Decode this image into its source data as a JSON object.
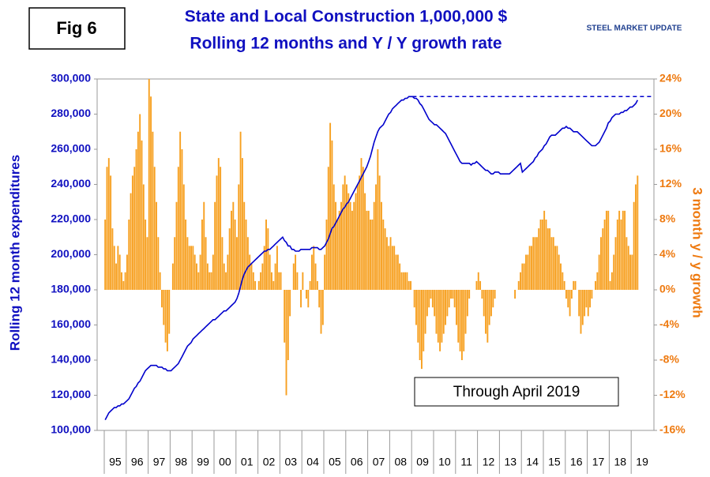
{
  "chart_data": {
    "type": "bar_line",
    "label": "Fig 6",
    "title": "State and Local Construction 1,000,000 $",
    "subtitle": "Rolling 12 months and Y / Y growth rate",
    "logo": "STEEL MARKET UPDATE",
    "annotation": "Through April 2019",
    "y_label": "Rolling 12 month expenditures",
    "y2_label": "3 month y / y growth",
    "categories": [
      "95",
      "96",
      "97",
      "98",
      "99",
      "00",
      "01",
      "02",
      "03",
      "04",
      "05",
      "06",
      "07",
      "08",
      "09",
      "10",
      "11",
      "12",
      "13",
      "14",
      "15",
      "16",
      "17",
      "18",
      "19"
    ],
    "ylim": [
      100000,
      300000
    ],
    "yticks": [
      {
        "value": 100000,
        "label": "100,000"
      },
      {
        "value": 120000,
        "label": "120,000"
      },
      {
        "value": 140000,
        "label": "140,000"
      },
      {
        "value": 160000,
        "label": "160,000"
      },
      {
        "value": 180000,
        "label": "180,000"
      },
      {
        "value": 200000,
        "label": "200,000"
      },
      {
        "value": 220000,
        "label": "220,000"
      },
      {
        "value": 240000,
        "label": "240,000"
      },
      {
        "value": 260000,
        "label": "260,000"
      },
      {
        "value": 280000,
        "label": "280,000"
      },
      {
        "value": 300000,
        "label": "300,000"
      }
    ],
    "y2lim": [
      -16,
      24
    ],
    "y2ticks": [
      {
        "value": -16,
        "label": "-16%"
      },
      {
        "value": -12,
        "label": "-12%"
      },
      {
        "value": -8,
        "label": "-8%"
      },
      {
        "value": -4,
        "label": "-4%"
      },
      {
        "value": 0,
        "label": "0%"
      },
      {
        "value": 4,
        "label": "4%"
      },
      {
        "value": 8,
        "label": "8%"
      },
      {
        "value": 12,
        "label": "12%"
      },
      {
        "value": 16,
        "label": "16%"
      },
      {
        "value": 20,
        "label": "20%"
      },
      {
        "value": 24,
        "label": "24%"
      }
    ],
    "reference_line": 290000,
    "series": [
      {
        "type": "bar",
        "axis": "y2",
        "color": "#f7a020",
        "values": [
          [
            8,
            14,
            15,
            13,
            7,
            5,
            3,
            5,
            4,
            2,
            1,
            2
          ],
          [
            4,
            8,
            11,
            13,
            14,
            16,
            18,
            20,
            17,
            12,
            8,
            6
          ],
          [
            24,
            22,
            18,
            14,
            10,
            6,
            2,
            -2,
            -4,
            -6,
            -7,
            -5
          ],
          [
            0,
            3,
            6,
            10,
            14,
            18,
            16,
            12,
            8,
            6,
            5,
            5
          ],
          [
            5,
            4,
            3,
            2,
            4,
            8,
            10,
            6,
            3,
            2,
            2,
            4
          ],
          [
            10,
            13,
            15,
            14,
            6,
            3,
            2,
            4,
            7,
            9,
            10,
            8
          ],
          [
            6,
            12,
            18,
            15,
            10,
            8,
            6,
            4,
            3,
            2,
            1,
            0
          ],
          [
            1,
            2,
            3,
            5,
            8,
            7,
            4,
            2,
            1,
            3,
            5,
            2
          ],
          [
            2,
            0,
            -6,
            -12,
            -8,
            -3,
            0,
            3,
            4,
            2,
            0,
            -2
          ],
          [
            2,
            0,
            -1,
            -2,
            1,
            4,
            5,
            3,
            1,
            -2,
            -5,
            -4
          ],
          [
            4,
            8,
            14,
            19,
            17,
            12,
            10,
            8,
            9,
            10,
            12,
            13
          ],
          [
            12,
            11,
            10,
            9,
            10,
            11,
            12,
            13,
            15,
            14,
            11,
            9
          ],
          [
            9,
            8,
            8,
            10,
            12,
            16,
            13,
            10,
            8,
            7,
            6,
            5
          ],
          [
            6,
            5,
            5,
            4,
            4,
            3,
            2,
            2,
            2,
            2,
            1,
            1
          ],
          [
            0,
            -2,
            -4,
            -6,
            -8,
            -9,
            -7,
            -5,
            -3,
            -2,
            -1,
            -2
          ],
          [
            -3,
            -5,
            -6,
            -7,
            -6,
            -5,
            -4,
            -3,
            -2,
            -1,
            -1,
            -2
          ],
          [
            -4,
            -6,
            -7,
            -8,
            -7,
            -5,
            -3,
            -1,
            0,
            0,
            0,
            1
          ],
          [
            2,
            1,
            -1,
            -3,
            -5,
            -6,
            -4,
            -3,
            -2,
            -1,
            0,
            0
          ],
          [
            0,
            0,
            0,
            0,
            0,
            0,
            0,
            0,
            -1,
            0,
            1,
            2
          ],
          [
            3,
            3,
            4,
            4,
            5,
            5,
            6,
            6,
            6,
            7,
            8,
            8
          ],
          [
            9,
            8,
            7,
            7,
            6,
            6,
            5,
            5,
            4,
            3,
            2,
            1
          ],
          [
            -1,
            -2,
            -3,
            -1,
            1,
            1,
            0,
            -3,
            -5,
            -4,
            -3,
            -2
          ],
          [
            -3,
            -2,
            -1,
            0,
            1,
            2,
            4,
            6,
            7,
            8,
            9,
            9
          ],
          [
            1,
            2,
            4,
            6,
            8,
            9,
            8,
            9,
            9,
            6,
            5,
            4
          ],
          [
            4,
            10,
            12,
            13
          ]
        ]
      },
      {
        "type": "line",
        "axis": "y",
        "color": "#0000cc",
        "values": [
          [
            106000,
            108000,
            110000,
            111000,
            112000,
            113000,
            113000,
            114000,
            114000,
            115000,
            115000,
            116000
          ],
          [
            117000,
            118000,
            120000,
            122000,
            124000,
            125000,
            127000,
            128000,
            130000,
            132000,
            134000,
            135000
          ],
          [
            136000,
            137000,
            137000,
            137000,
            137000,
            136000,
            136000,
            136000,
            135000,
            135000,
            134000,
            134000
          ],
          [
            134000,
            135000,
            136000,
            137000,
            138000,
            140000,
            142000,
            144000,
            146000,
            148000,
            149000,
            150000
          ],
          [
            152000,
            153000,
            154000,
            155000,
            156000,
            157000,
            158000,
            159000,
            160000,
            161000,
            162000,
            163000
          ],
          [
            163000,
            164000,
            165000,
            166000,
            167000,
            168000,
            168000,
            169000,
            170000,
            171000,
            172000,
            173000
          ],
          [
            175000,
            178000,
            182000,
            186000,
            189000,
            191000,
            193000,
            194000,
            195000,
            196000,
            197000,
            198000
          ],
          [
            199000,
            200000,
            201000,
            202000,
            202000,
            203000,
            203000,
            204000,
            205000,
            206000,
            207000,
            208000
          ],
          [
            209000,
            210000,
            208000,
            207000,
            205000,
            205000,
            203000,
            203000,
            202000,
            202000,
            202000,
            203000
          ],
          [
            203000,
            203000,
            203000,
            203000,
            203000,
            204000,
            204000,
            204000,
            204000,
            203000,
            203000,
            204000
          ],
          [
            205000,
            207000,
            209000,
            212000,
            215000,
            216000,
            218000,
            220000,
            222000,
            224000,
            226000,
            227000
          ],
          [
            229000,
            230000,
            232000,
            234000,
            236000,
            238000,
            240000,
            242000,
            244000,
            246000,
            248000,
            250000
          ],
          [
            253000,
            256000,
            260000,
            264000,
            267000,
            270000,
            272000,
            273000,
            274000,
            276000,
            278000,
            280000
          ],
          [
            281000,
            283000,
            284000,
            285000,
            286000,
            287000,
            288000,
            288000,
            289000,
            289000,
            290000,
            290000
          ],
          [
            290000,
            289000,
            289000,
            288000,
            286000,
            285000,
            283000,
            281000,
            279000,
            277000,
            276000,
            275000
          ],
          [
            274000,
            274000,
            273000,
            272000,
            271000,
            270000,
            269000,
            267000,
            265000,
            263000,
            261000,
            259000
          ],
          [
            257000,
            255000,
            253000,
            252000,
            252000,
            252000,
            252000,
            252000,
            251000,
            252000,
            252000,
            253000
          ],
          [
            252000,
            251000,
            250000,
            249000,
            248000,
            248000,
            247000,
            246000,
            246000,
            247000,
            247000,
            247000
          ],
          [
            246000,
            246000,
            246000,
            246000,
            246000,
            246000,
            247000,
            248000,
            249000,
            250000,
            251000,
            252000
          ],
          [
            247000,
            248000,
            249000,
            250000,
            251000,
            252000,
            253000,
            255000,
            256000,
            258000,
            259000,
            260000
          ],
          [
            262000,
            263000,
            265000,
            267000,
            268000,
            268000,
            268000,
            269000,
            270000,
            271000,
            272000,
            272000
          ],
          [
            273000,
            272000,
            272000,
            271000,
            270000,
            270000,
            270000,
            269000,
            268000,
            267000,
            266000,
            265000
          ],
          [
            264000,
            263000,
            262000,
            262000,
            262000,
            263000,
            264000,
            266000,
            268000,
            270000,
            272000,
            275000
          ],
          [
            276000,
            278000,
            279000,
            280000,
            280000,
            280000,
            281000,
            281000,
            282000,
            282000,
            283000,
            284000
          ],
          [
            284000,
            285000,
            286000,
            288000
          ]
        ]
      }
    ]
  }
}
